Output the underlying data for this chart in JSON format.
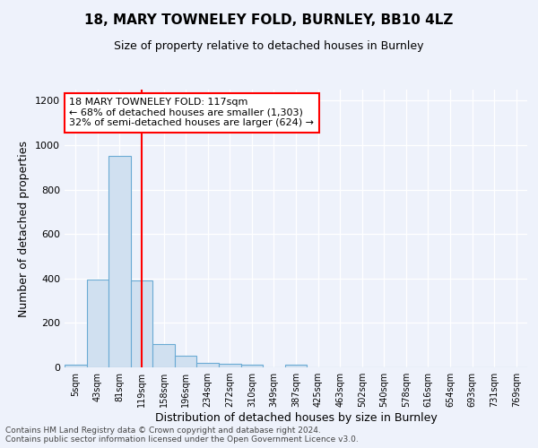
{
  "title1": "18, MARY TOWNELEY FOLD, BURNLEY, BB10 4LZ",
  "title2": "Size of property relative to detached houses in Burnley",
  "xlabel": "Distribution of detached houses by size in Burnley",
  "ylabel": "Number of detached properties",
  "categories": [
    "5sqm",
    "43sqm",
    "81sqm",
    "119sqm",
    "158sqm",
    "196sqm",
    "234sqm",
    "272sqm",
    "310sqm",
    "349sqm",
    "387sqm",
    "425sqm",
    "463sqm",
    "502sqm",
    "540sqm",
    "578sqm",
    "616sqm",
    "654sqm",
    "693sqm",
    "731sqm",
    "769sqm"
  ],
  "values": [
    12,
    395,
    950,
    390,
    105,
    52,
    22,
    15,
    12,
    0,
    12,
    0,
    0,
    0,
    0,
    0,
    0,
    0,
    0,
    0,
    0
  ],
  "bar_color": "#d0e0f0",
  "bar_edge_color": "#6aaad4",
  "red_line_x": 3.0,
  "annotation_title": "18 MARY TOWNELEY FOLD: 117sqm",
  "annotation_line1": "← 68% of detached houses are smaller (1,303)",
  "annotation_line2": "32% of semi-detached houses are larger (624) →",
  "footer": "Contains HM Land Registry data © Crown copyright and database right 2024.\nContains public sector information licensed under the Open Government Licence v3.0.",
  "ylim": [
    0,
    1250
  ],
  "background_color": "#eef2fb",
  "grid_color": "#ffffff",
  "title1_fontsize": 11,
  "title2_fontsize": 9,
  "ylabel_fontsize": 9,
  "xlabel_fontsize": 9,
  "tick_fontsize": 7,
  "footer_fontsize": 6.5,
  "annot_fontsize": 8
}
